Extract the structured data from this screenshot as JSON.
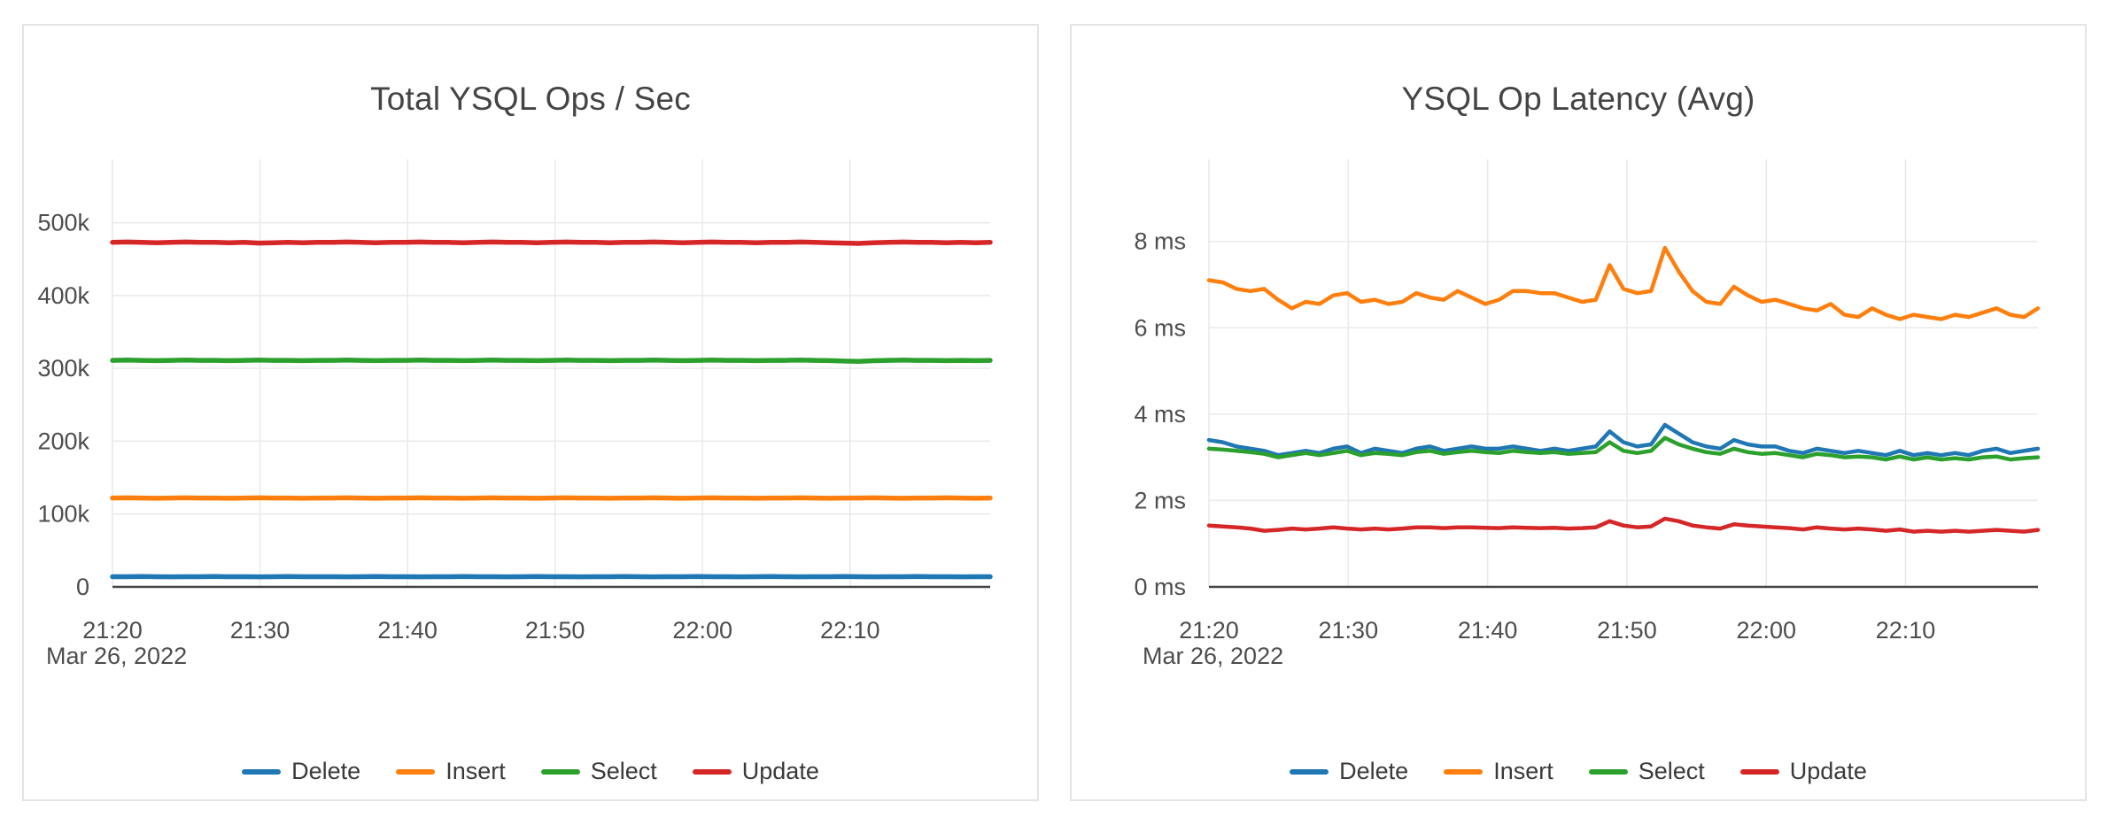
{
  "page": {
    "background": "#ffffff",
    "card_border_color": "#e4e4e4",
    "grid_color": "#e9e9e9",
    "axis_line_color": "#424242",
    "tick_text_color": "#4d4d4d",
    "title_color": "#444444",
    "legend_text_color": "#3a3a3a"
  },
  "chart_data": [
    {
      "type": "line",
      "title": "Total YSQL Ops / Sec",
      "date_label": "Mar 26, 2022",
      "grid": true,
      "legend_position": "bottom",
      "x_range_minutes": [
        0,
        59.5
      ],
      "x_tick_minutes": [
        0,
        10,
        20,
        30,
        40,
        50
      ],
      "x_tick_labels": [
        "21:20",
        "21:30",
        "21:40",
        "21:50",
        "22:00",
        "22:10"
      ],
      "y_range": [
        0,
        587
      ],
      "y_unit": "ops/sec (thousands)",
      "y_ticks": [
        {
          "label": "0",
          "value": 0
        },
        {
          "label": "100k",
          "value": 100
        },
        {
          "label": "200k",
          "value": 200
        },
        {
          "label": "300k",
          "value": 300
        },
        {
          "label": "400k",
          "value": 400
        },
        {
          "label": "500k",
          "value": 500
        }
      ],
      "series": [
        {
          "name": "Delete",
          "color": "#1f77b4",
          "values": [
            14,
            14,
            14.2,
            14,
            13.8,
            14,
            14,
            14.2,
            14,
            14,
            13.8,
            14,
            14.2,
            14,
            14,
            14,
            13.8,
            14,
            14.2,
            14,
            14,
            13.8,
            14,
            14,
            14.2,
            14,
            14,
            13.8,
            14,
            14.2,
            14,
            14,
            13.8,
            14,
            14,
            14.2,
            14,
            13.8,
            14,
            14,
            14.2,
            14,
            14,
            13.8,
            14,
            14.2,
            14,
            13.8,
            14,
            14,
            14.2,
            14,
            13.8,
            14,
            14,
            14.2,
            14,
            14,
            13.8,
            14,
            14
          ]
        },
        {
          "name": "Insert",
          "color": "#ff7f0e",
          "values": [
            122,
            122.3,
            122,
            121.7,
            122,
            122.3,
            122,
            122,
            121.7,
            122,
            122.3,
            122,
            122,
            121.7,
            122,
            122,
            122.3,
            122,
            121.7,
            122,
            122,
            122.3,
            122,
            122,
            121.7,
            122,
            122.3,
            122,
            122,
            121.7,
            122,
            122.3,
            122,
            122,
            121.7,
            122,
            122,
            122.3,
            122,
            121.7,
            122,
            122.3,
            122,
            122,
            121.7,
            122,
            122,
            122.3,
            122,
            121.7,
            122,
            122,
            122.3,
            122,
            121.7,
            122,
            122,
            122.3,
            122,
            121.7,
            122
          ]
        },
        {
          "name": "Select",
          "color": "#2ca02c",
          "values": [
            311,
            311.4,
            311,
            310.6,
            311,
            311.4,
            311,
            311,
            310.6,
            311,
            311.4,
            311,
            311,
            310.6,
            311,
            311,
            311.4,
            311,
            310.6,
            311,
            311,
            311.4,
            311,
            311,
            310.6,
            311,
            311.4,
            311,
            311,
            310.6,
            311,
            311.4,
            311,
            311,
            310.6,
            311,
            311,
            311.4,
            311,
            310.6,
            311,
            311.4,
            311,
            311,
            310.6,
            311,
            311,
            311.4,
            311,
            310.6,
            310,
            309.5,
            310.5,
            311,
            311.4,
            311,
            311,
            310.6,
            311,
            310.6,
            311
          ]
        },
        {
          "name": "Update",
          "color": "#d62728",
          "values": [
            473,
            473.5,
            473,
            472.5,
            473,
            473.5,
            473,
            473,
            472.5,
            473,
            472,
            472.5,
            473,
            472.5,
            473,
            473,
            473.5,
            473,
            472.5,
            473,
            473,
            473.5,
            473,
            473,
            472.5,
            473,
            473.5,
            473,
            473,
            472.5,
            473,
            473.5,
            473,
            473,
            472.5,
            473,
            473,
            473.5,
            473,
            472.5,
            473,
            473.5,
            473,
            473,
            472.5,
            473,
            473,
            473.5,
            473,
            472.5,
            472,
            471.5,
            472.5,
            473,
            473.5,
            473,
            473,
            472.5,
            473,
            472.5,
            473
          ]
        }
      ],
      "legend": [
        "Delete",
        "Insert",
        "Select",
        "Update"
      ],
      "line_width": 5.5
    },
    {
      "type": "line",
      "title": "YSQL Op Latency (Avg)",
      "date_label": "Mar 26, 2022",
      "grid": true,
      "legend_position": "bottom",
      "x_range_minutes": [
        0,
        59.5
      ],
      "x_tick_minutes": [
        0,
        10,
        20,
        30,
        40,
        50
      ],
      "x_tick_labels": [
        "21:20",
        "21:30",
        "21:40",
        "21:50",
        "22:00",
        "22:10"
      ],
      "y_range": [
        0,
        9.9
      ],
      "y_unit": "milliseconds",
      "y_ticks": [
        {
          "label": "0 ms",
          "value": 0
        },
        {
          "label": "2 ms",
          "value": 2
        },
        {
          "label": "4 ms",
          "value": 4
        },
        {
          "label": "6 ms",
          "value": 6
        },
        {
          "label": "8 ms",
          "value": 8
        }
      ],
      "series": [
        {
          "name": "Delete",
          "color": "#1f77b4",
          "values": [
            3.4,
            3.35,
            3.25,
            3.2,
            3.15,
            3.05,
            3.1,
            3.15,
            3.1,
            3.2,
            3.25,
            3.1,
            3.2,
            3.15,
            3.1,
            3.2,
            3.25,
            3.15,
            3.2,
            3.25,
            3.2,
            3.2,
            3.25,
            3.2,
            3.15,
            3.2,
            3.15,
            3.2,
            3.25,
            3.6,
            3.35,
            3.25,
            3.3,
            3.75,
            3.55,
            3.35,
            3.25,
            3.2,
            3.4,
            3.3,
            3.25,
            3.25,
            3.15,
            3.1,
            3.2,
            3.15,
            3.1,
            3.15,
            3.1,
            3.05,
            3.15,
            3.05,
            3.1,
            3.05,
            3.1,
            3.05,
            3.15,
            3.2,
            3.1,
            3.15,
            3.2
          ]
        },
        {
          "name": "Insert",
          "color": "#ff7f0e",
          "values": [
            7.1,
            7.05,
            6.9,
            6.85,
            6.9,
            6.65,
            6.45,
            6.6,
            6.55,
            6.75,
            6.8,
            6.6,
            6.65,
            6.55,
            6.6,
            6.8,
            6.7,
            6.65,
            6.85,
            6.7,
            6.55,
            6.65,
            6.85,
            6.85,
            6.8,
            6.8,
            6.7,
            6.6,
            6.65,
            7.45,
            6.9,
            6.8,
            6.85,
            7.85,
            7.3,
            6.85,
            6.6,
            6.55,
            6.95,
            6.75,
            6.6,
            6.65,
            6.55,
            6.45,
            6.4,
            6.55,
            6.3,
            6.25,
            6.45,
            6.3,
            6.2,
            6.3,
            6.25,
            6.2,
            6.3,
            6.25,
            6.35,
            6.45,
            6.3,
            6.25,
            6.45
          ]
        },
        {
          "name": "Select",
          "color": "#2ca02c",
          "values": [
            3.2,
            3.18,
            3.15,
            3.12,
            3.08,
            3.0,
            3.05,
            3.1,
            3.05,
            3.1,
            3.15,
            3.05,
            3.1,
            3.08,
            3.05,
            3.12,
            3.15,
            3.08,
            3.12,
            3.15,
            3.12,
            3.1,
            3.15,
            3.12,
            3.1,
            3.12,
            3.08,
            3.1,
            3.12,
            3.35,
            3.15,
            3.1,
            3.15,
            3.45,
            3.3,
            3.2,
            3.12,
            3.08,
            3.2,
            3.12,
            3.08,
            3.1,
            3.05,
            3.0,
            3.08,
            3.05,
            3.0,
            3.02,
            3.0,
            2.95,
            3.02,
            2.95,
            3.0,
            2.95,
            2.98,
            2.95,
            3.0,
            3.02,
            2.95,
            2.98,
            3.0
          ]
        },
        {
          "name": "Update",
          "color": "#d62728",
          "values": [
            1.42,
            1.4,
            1.38,
            1.35,
            1.3,
            1.32,
            1.35,
            1.33,
            1.35,
            1.38,
            1.35,
            1.33,
            1.35,
            1.33,
            1.35,
            1.38,
            1.38,
            1.36,
            1.38,
            1.38,
            1.37,
            1.36,
            1.38,
            1.37,
            1.36,
            1.37,
            1.35,
            1.36,
            1.38,
            1.52,
            1.42,
            1.38,
            1.4,
            1.58,
            1.52,
            1.42,
            1.38,
            1.35,
            1.45,
            1.42,
            1.4,
            1.38,
            1.36,
            1.33,
            1.38,
            1.35,
            1.33,
            1.35,
            1.33,
            1.3,
            1.33,
            1.28,
            1.3,
            1.28,
            1.3,
            1.28,
            1.3,
            1.32,
            1.3,
            1.28,
            1.32
          ]
        }
      ],
      "legend": [
        "Delete",
        "Insert",
        "Select",
        "Update"
      ],
      "line_width": 4.5
    }
  ]
}
